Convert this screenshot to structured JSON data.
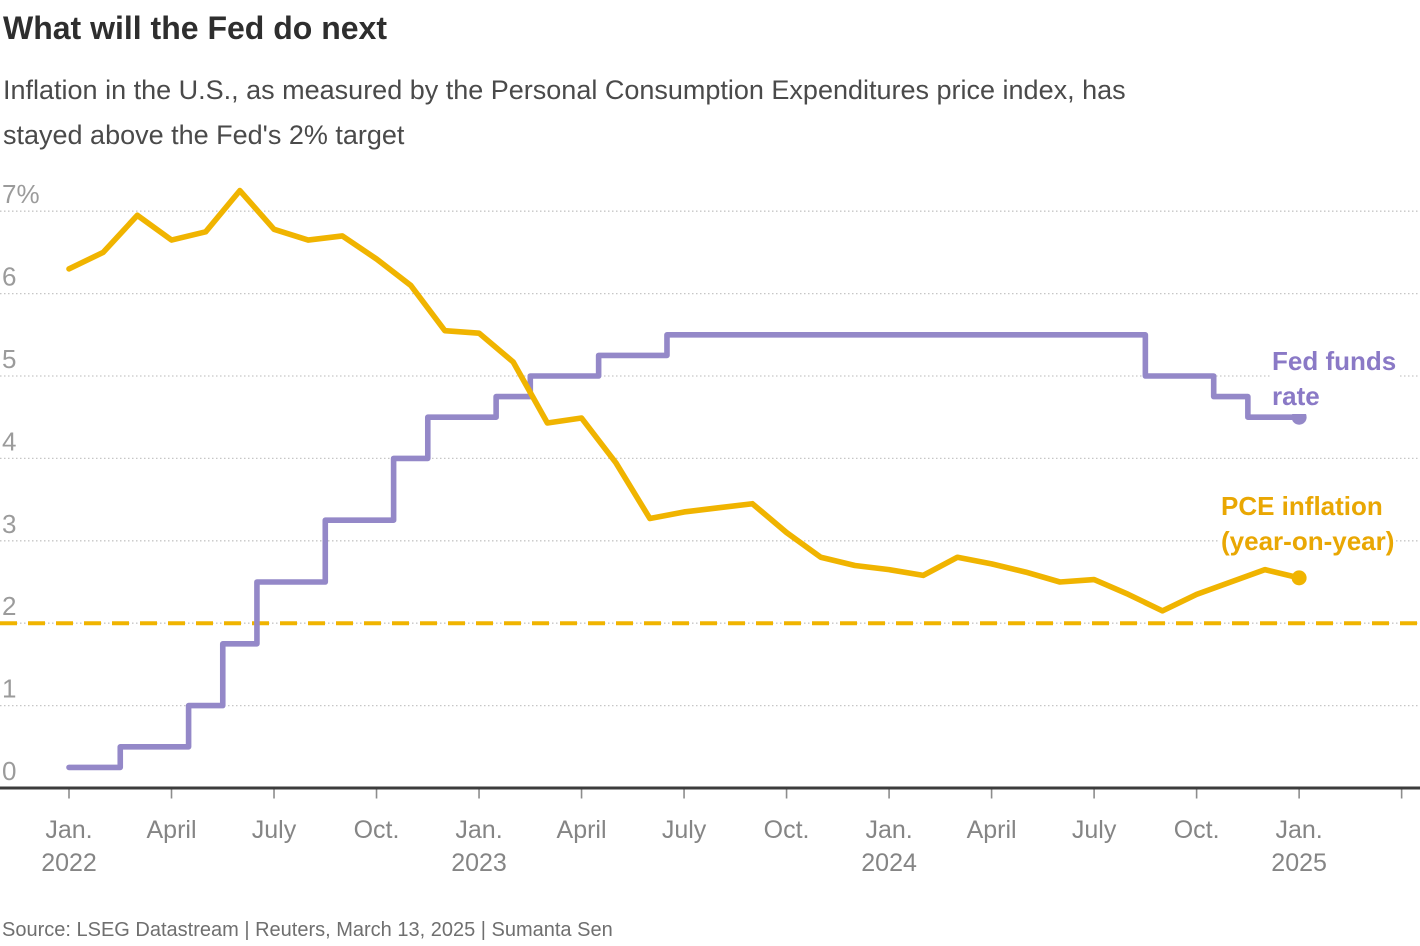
{
  "header": {
    "title": "What will the Fed do next",
    "subtitle": "Inflation in the U.S., as measured by the Personal Consumption Expenditures price index, has\nstayed above the Fed's 2% target"
  },
  "legend": {
    "fed": {
      "line1": "Fed funds",
      "line2": "rate",
      "color": "#8a79c6"
    },
    "pce": {
      "line1": "PCE inflation",
      "line2": "(year-on-year)",
      "color": "#e9a703"
    }
  },
  "source": "Source: LSEG Datastream | Reuters, March 13, 2025 | Sumanta Sen",
  "chart_data": {
    "type": "line",
    "x_axis": {
      "start": "Jan 2022",
      "end": "Jan 2025",
      "frequency": "monthly",
      "points": 37
    },
    "ylim": [
      0,
      7
    ],
    "grid": "horizontal-dotted",
    "legend_position": "right-inline",
    "series": [
      {
        "name": "Fed funds rate",
        "style": "step-mid",
        "color": "#9488c8",
        "end_dot": true,
        "values": [
          0.25,
          0.25,
          0.5,
          0.5,
          1.0,
          1.75,
          2.5,
          2.5,
          3.25,
          3.25,
          4.0,
          4.5,
          4.5,
          4.75,
          5.0,
          5.0,
          5.25,
          5.25,
          5.5,
          5.5,
          5.5,
          5.5,
          5.5,
          5.5,
          5.5,
          5.5,
          5.5,
          5.5,
          5.5,
          5.5,
          5.5,
          5.5,
          5.0,
          5.0,
          4.75,
          4.5,
          4.5
        ]
      },
      {
        "name": "PCE inflation (year-on-year)",
        "style": "line",
        "color": "#f0b400",
        "end_dot": true,
        "values": [
          6.3,
          6.5,
          6.95,
          6.65,
          6.75,
          7.25,
          6.78,
          6.65,
          6.7,
          6.42,
          6.1,
          5.55,
          5.52,
          5.17,
          4.43,
          4.49,
          3.95,
          3.27,
          3.35,
          3.4,
          3.45,
          3.1,
          2.8,
          2.7,
          2.65,
          2.58,
          2.8,
          2.72,
          2.62,
          2.5,
          2.53,
          2.35,
          2.15,
          2.35,
          2.5,
          2.65,
          2.55
        ]
      }
    ],
    "target_line": {
      "label": "Fed 2% target",
      "value": 2,
      "color": "#f0b400",
      "style": "dashed"
    },
    "yticks": [
      {
        "v": 0,
        "label": "0"
      },
      {
        "v": 1,
        "label": "1"
      },
      {
        "v": 2,
        "label": "2"
      },
      {
        "v": 3,
        "label": "3"
      },
      {
        "v": 4,
        "label": "4"
      },
      {
        "v": 5,
        "label": "5"
      },
      {
        "v": 6,
        "label": "6"
      },
      {
        "v": 7,
        "label": "7%"
      }
    ],
    "xticks": [
      {
        "i": 0,
        "label": "Jan.",
        "year": "2022"
      },
      {
        "i": 3,
        "label": "April"
      },
      {
        "i": 6,
        "label": "July"
      },
      {
        "i": 9,
        "label": "Oct."
      },
      {
        "i": 12,
        "label": "Jan.",
        "year": "2023"
      },
      {
        "i": 15,
        "label": "April"
      },
      {
        "i": 18,
        "label": "July"
      },
      {
        "i": 21,
        "label": "Oct."
      },
      {
        "i": 24,
        "label": "Jan.",
        "year": "2024"
      },
      {
        "i": 27,
        "label": "April"
      },
      {
        "i": 30,
        "label": "July"
      },
      {
        "i": 33,
        "label": "Oct."
      },
      {
        "i": 36,
        "label": "Jan.",
        "year": "2025"
      },
      {
        "i": 39,
        "label": ""
      }
    ]
  }
}
